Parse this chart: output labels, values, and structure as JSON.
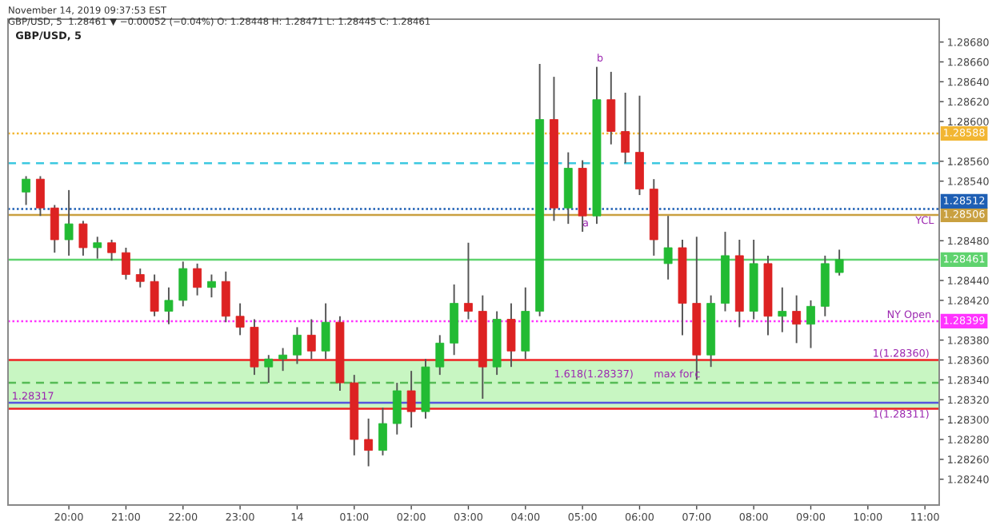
{
  "chart_data": {
    "type": "candlestick",
    "title": "GBP/USD, 5",
    "x": [
      "2019-11-13T19:15",
      "2019-11-13T19:30",
      "2019-11-13T19:45",
      "2019-11-13T20:00",
      "2019-11-13T20:15",
      "2019-11-13T20:30",
      "2019-11-13T20:45",
      "2019-11-13T21:00",
      "2019-11-13T21:15",
      "2019-11-13T21:30",
      "2019-11-13T21:45",
      "2019-11-13T22:00",
      "2019-11-13T22:15",
      "2019-11-13T22:30",
      "2019-11-13T22:45",
      "2019-11-13T23:00",
      "2019-11-13T23:15",
      "2019-11-13T23:30",
      "2019-11-13T23:45",
      "2019-11-14T00:00",
      "2019-11-14T00:15",
      "2019-11-14T00:30",
      "2019-11-14T00:45",
      "2019-11-14T01:00",
      "2019-11-14T01:15",
      "2019-11-14T01:30",
      "2019-11-14T01:45",
      "2019-11-14T02:00",
      "2019-11-14T02:15",
      "2019-11-14T02:30",
      "2019-11-14T02:45",
      "2019-11-14T03:00",
      "2019-11-14T03:15",
      "2019-11-14T03:30",
      "2019-11-14T03:45",
      "2019-11-14T04:00",
      "2019-11-14T04:15",
      "2019-11-14T04:30",
      "2019-11-14T04:45",
      "2019-11-14T05:00",
      "2019-11-14T05:15",
      "2019-11-14T05:30",
      "2019-11-14T05:45",
      "2019-11-14T06:00",
      "2019-11-14T06:15",
      "2019-11-14T06:30",
      "2019-11-14T06:45",
      "2019-11-14T07:00",
      "2019-11-14T07:15",
      "2019-11-14T07:30",
      "2019-11-14T07:45",
      "2019-11-14T08:00",
      "2019-11-14T08:15",
      "2019-11-14T08:30",
      "2019-11-14T08:45",
      "2019-11-14T09:00",
      "2019-11-14T09:15",
      "2019-11-14T09:30"
    ],
    "ohlc": [
      [
        1.28529,
        1.28545,
        1.28516,
        1.28542
      ],
      [
        1.28542,
        1.28545,
        1.28505,
        1.28513
      ],
      [
        1.28513,
        1.28516,
        1.28468,
        1.28481
      ],
      [
        1.28481,
        1.28531,
        1.28465,
        1.28497
      ],
      [
        1.28497,
        1.285,
        1.28465,
        1.28473
      ],
      [
        1.28473,
        1.28484,
        1.28462,
        1.28478
      ],
      [
        1.28478,
        1.28481,
        1.2846,
        1.28468
      ],
      [
        1.28468,
        1.28473,
        1.28441,
        1.28446
      ],
      [
        1.28446,
        1.28452,
        1.28433,
        1.28439
      ],
      [
        1.28439,
        1.28446,
        1.28404,
        1.28409
      ],
      [
        1.28409,
        1.28433,
        1.28396,
        1.2842
      ],
      [
        1.2842,
        1.28459,
        1.28414,
        1.28452
      ],
      [
        1.28452,
        1.28457,
        1.28425,
        1.28433
      ],
      [
        1.28433,
        1.28446,
        1.28423,
        1.28439
      ],
      [
        1.28439,
        1.28449,
        1.28398,
        1.28404
      ],
      [
        1.28404,
        1.28417,
        1.28385,
        1.28393
      ],
      [
        1.28393,
        1.28401,
        1.28345,
        1.28353
      ],
      [
        1.28353,
        1.28365,
        1.28337,
        1.28361
      ],
      [
        1.28361,
        1.28372,
        1.28349,
        1.28365
      ],
      [
        1.28365,
        1.28393,
        1.28356,
        1.28385
      ],
      [
        1.28385,
        1.28401,
        1.28361,
        1.28369
      ],
      [
        1.28369,
        1.28417,
        1.28361,
        1.28398
      ],
      [
        1.28398,
        1.28404,
        1.28329,
        1.28337
      ],
      [
        1.28337,
        1.28345,
        1.28264,
        1.2828
      ],
      [
        1.2828,
        1.28301,
        1.28253,
        1.28269
      ],
      [
        1.28269,
        1.28312,
        1.28264,
        1.28296
      ],
      [
        1.28296,
        1.28337,
        1.28285,
        1.28329
      ],
      [
        1.28329,
        1.28349,
        1.28292,
        1.28308
      ],
      [
        1.28308,
        1.28361,
        1.28301,
        1.28353
      ],
      [
        1.28353,
        1.28385,
        1.28345,
        1.28377
      ],
      [
        1.28377,
        1.28436,
        1.28365,
        1.28417
      ],
      [
        1.28417,
        1.28478,
        1.28401,
        1.28409
      ],
      [
        1.28409,
        1.28425,
        1.28321,
        1.28353
      ],
      [
        1.28353,
        1.28409,
        1.28345,
        1.28401
      ],
      [
        1.28401,
        1.28417,
        1.28353,
        1.28369
      ],
      [
        1.28369,
        1.28433,
        1.28361,
        1.28409
      ],
      [
        1.28409,
        1.28658,
        1.28404,
        1.28602
      ],
      [
        1.28602,
        1.28645,
        1.285,
        1.28513
      ],
      [
        1.28513,
        1.28569,
        1.28497,
        1.28553
      ],
      [
        1.28553,
        1.28561,
        1.28489,
        1.28505
      ],
      [
        1.28505,
        1.28655,
        1.28497,
        1.28622
      ],
      [
        1.28622,
        1.2865,
        1.28577,
        1.2859
      ],
      [
        1.2859,
        1.28629,
        1.28558,
        1.28569
      ],
      [
        1.28569,
        1.28626,
        1.28526,
        1.28532
      ],
      [
        1.28532,
        1.28542,
        1.28465,
        1.28481
      ],
      [
        1.28457,
        1.28505,
        1.28441,
        1.28473
      ],
      [
        1.28473,
        1.28481,
        1.28385,
        1.28417
      ],
      [
        1.28417,
        1.28484,
        1.2834,
        1.28365
      ],
      [
        1.28365,
        1.28425,
        1.28353,
        1.28417
      ],
      [
        1.28417,
        1.28489,
        1.28409,
        1.28465
      ],
      [
        1.28465,
        1.28481,
        1.28393,
        1.28409
      ],
      [
        1.28409,
        1.28481,
        1.28401,
        1.28457
      ],
      [
        1.28457,
        1.28465,
        1.28385,
        1.28404
      ],
      [
        1.28404,
        1.28433,
        1.28388,
        1.28409
      ],
      [
        1.28409,
        1.28425,
        1.28377,
        1.28396
      ],
      [
        1.28396,
        1.2842,
        1.28372,
        1.28414
      ],
      [
        1.28414,
        1.28465,
        1.28404,
        1.28457
      ],
      [
        1.28448,
        1.28471,
        1.28445,
        1.28461
      ]
    ],
    "colors": [
      "#22bb33",
      "#dd2222",
      "#dd2222",
      "#22bb33",
      "#dd2222",
      "#22bb33",
      "#dd2222",
      "#dd2222",
      "#dd2222",
      "#dd2222",
      "#22bb33",
      "#22bb33",
      "#dd2222",
      "#22bb33",
      "#dd2222",
      "#dd2222",
      "#dd2222",
      "#22bb33",
      "#22bb33",
      "#22bb33",
      "#dd2222",
      "#22bb33",
      "#dd2222",
      "#dd2222",
      "#dd2222",
      "#22bb33",
      "#22bb33",
      "#dd2222",
      "#22bb33",
      "#22bb33",
      "#22bb33",
      "#dd2222",
      "#dd2222",
      "#22bb33",
      "#dd2222",
      "#22bb33",
      "#22bb33",
      "#dd2222",
      "#22bb33",
      "#dd2222",
      "#22bb33",
      "#dd2222",
      "#dd2222",
      "#dd2222",
      "#dd2222",
      "#22bb33",
      "#dd2222",
      "#dd2222",
      "#22bb33",
      "#22bb33",
      "#dd2222",
      "#22bb33",
      "#dd2222",
      "#22bb33",
      "#dd2222",
      "#22bb33",
      "#22bb33",
      "#22bb33"
    ],
    "xlim": [
      "2019-11-13T18:56",
      "2019-11-14T11:15"
    ],
    "xticks": [
      {
        "value": "2019-11-13T20:00",
        "label": "20:00"
      },
      {
        "value": "2019-11-13T21:00",
        "label": "21:00"
      },
      {
        "value": "2019-11-13T22:00",
        "label": "22:00"
      },
      {
        "value": "2019-11-13T23:00",
        "label": "23:00"
      },
      {
        "value": "2019-11-14T00:00",
        "label": "14"
      },
      {
        "value": "2019-11-14T01:00",
        "label": "01:00"
      },
      {
        "value": "2019-11-14T02:00",
        "label": "02:00"
      },
      {
        "value": "2019-11-14T03:00",
        "label": "03:00"
      },
      {
        "value": "2019-11-14T04:00",
        "label": "04:00"
      },
      {
        "value": "2019-11-14T05:00",
        "label": "05:00"
      },
      {
        "value": "2019-11-14T06:00",
        "label": "06:00"
      },
      {
        "value": "2019-11-14T07:00",
        "label": "07:00"
      },
      {
        "value": "2019-11-14T08:00",
        "label": "08:00"
      },
      {
        "value": "2019-11-14T09:00",
        "label": "09:00"
      },
      {
        "value": "2019-11-14T10:00",
        "label": "10:00"
      },
      {
        "value": "2019-11-14T11:00",
        "label": "11:00"
      }
    ],
    "ylim": [
      1.28214,
      1.28703
    ],
    "yticks": [
      {
        "value": 1.2824,
        "label": "1.28240"
      },
      {
        "value": 1.2826,
        "label": "1.28260"
      },
      {
        "value": 1.2828,
        "label": "1.28280"
      },
      {
        "value": 1.283,
        "label": "1.28300"
      },
      {
        "value": 1.2832,
        "label": "1.28320"
      },
      {
        "value": 1.2834,
        "label": "1.28340"
      },
      {
        "value": 1.2836,
        "label": "1.28360"
      },
      {
        "value": 1.2838,
        "label": "1.28380"
      },
      {
        "value": 1.2842,
        "label": "1.28420"
      },
      {
        "value": 1.2844,
        "label": "1.28440"
      },
      {
        "value": 1.2848,
        "label": "1.28480"
      },
      {
        "value": 1.2854,
        "label": "1.28540"
      },
      {
        "value": 1.2856,
        "label": "1.28560"
      },
      {
        "value": 1.286,
        "label": "1.28600"
      },
      {
        "value": 1.2862,
        "label": "1.28620"
      },
      {
        "value": 1.2864,
        "label": "1.28640"
      },
      {
        "value": 1.2866,
        "label": "1.28660"
      },
      {
        "value": 1.2868,
        "label": "1.28680"
      }
    ],
    "bands": [
      {
        "axis": "y",
        "from": 1.28311,
        "to": 1.2836,
        "color": "#c2f5bb"
      }
    ],
    "ref_lines": [
      {
        "axis": "y",
        "value": 1.28588,
        "label": "1.28588",
        "color": "#f2b632",
        "line_style": "dotted"
      },
      {
        "axis": "y",
        "value": 1.28558,
        "color": "#3cc8e0",
        "line_style": "dashed"
      },
      {
        "axis": "y",
        "value": 1.28512,
        "label": "1.28512",
        "color": "#1e5fb4",
        "line_style": "dotted"
      },
      {
        "axis": "y",
        "value": 1.28506,
        "label": "1.28506",
        "color": "#c9a040",
        "line_style": "solid"
      },
      {
        "axis": "y",
        "value": 1.28461,
        "label": "1.28461",
        "color": "#5fd36e",
        "line_style": "solid"
      },
      {
        "axis": "y",
        "value": 1.28399,
        "label": "1.28399",
        "color": "#ff33ff",
        "line_style": "dotted"
      },
      {
        "axis": "y",
        "value": 1.2836,
        "color": "#ee2222",
        "line_style": "solid"
      },
      {
        "axis": "y",
        "value": 1.28337,
        "color": "#55bb55",
        "line_style": "dashed"
      },
      {
        "axis": "y",
        "value": 1.28317,
        "color": "#5555dd",
        "line_style": "solid"
      },
      {
        "axis": "y",
        "value": 1.28311,
        "color": "#ee2222",
        "line_style": "solid"
      }
    ],
    "annotations": [
      "November 14, 2019 09:37:53 EST",
      "GBP/USD, 5  1.28461 ▼ −0.00052 (−0.04%) O: 1.28448 H: 1.28471 L: 1.28445 C: 1.28461",
      {
        "text": "a",
        "x": "2019-11-14T05:00",
        "y": 1.28489
      },
      {
        "text": "b",
        "x": "2019-11-14T05:15",
        "y": 1.28655
      },
      {
        "text": "max for",
        "x": "2019-11-14T06:15",
        "y": 1.28337
      },
      {
        "text": "c",
        "x": "2019-11-14T06:58",
        "y": 1.28337
      },
      {
        "text": "1.618(1.28337)",
        "x": "2019-11-14T04:30",
        "y": 1.28337
      },
      {
        "text": "1.28317",
        "x": "2019-11-13T19:00",
        "y": 1.28317
      },
      {
        "text": "YCL",
        "x": "2019-11-14T10:50",
        "y": 1.28506
      },
      {
        "text": "NY Open",
        "x": "2019-11-14T10:20",
        "y": 1.28399
      },
      {
        "text": "1(1.28360)",
        "x": "2019-11-14T10:05",
        "y": 1.2836
      },
      {
        "text": "1(1.28311)",
        "x": "2019-11-14T10:05",
        "y": 1.28311
      }
    ],
    "grid": false,
    "legend": false
  }
}
